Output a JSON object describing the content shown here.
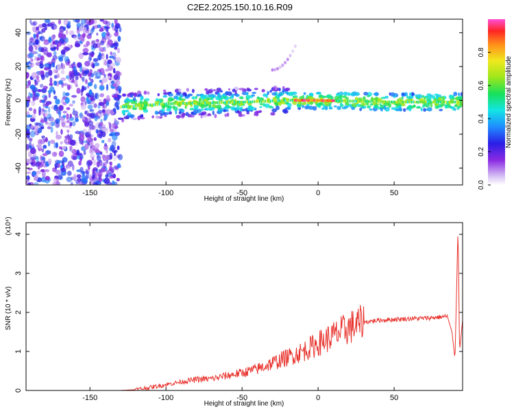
{
  "title": "C2E2.2025.150.10.16.R09",
  "chart_data": [
    {
      "type": "heatmap",
      "xlabel": "Height of straight line (km)",
      "ylabel": "Frequency (Hz)",
      "xlim": [
        -192,
        95
      ],
      "ylim": [
        -50,
        48
      ],
      "xticks": [
        -150,
        -100,
        -50,
        0,
        50
      ],
      "yticks": [
        -40,
        -20,
        0,
        20,
        40
      ],
      "colorbar": {
        "label": "Normalized spectral amplitude",
        "range": [
          0,
          1
        ],
        "ticks": [
          "0.0",
          "0.2",
          "0.4",
          "0.6",
          "0.8"
        ]
      },
      "regions": [
        {
          "x": [
            -192,
            -130
          ],
          "y": [
            -50,
            48
          ],
          "amplitude": [
            0.05,
            0.35
          ],
          "pattern": "scattered"
        },
        {
          "x": [
            -130,
            95
          ],
          "y": [
            -8,
            8
          ],
          "amplitude": [
            0.1,
            0.7
          ],
          "pattern": "band"
        },
        {
          "x": [
            -15,
            10
          ],
          "y": [
            -3,
            3
          ],
          "amplitude": [
            0.8,
            1.0
          ],
          "pattern": "peak"
        },
        {
          "x": [
            -30,
            -15
          ],
          "y": [
            18,
            32
          ],
          "amplitude": [
            0.05,
            0.15
          ],
          "pattern": "faint-arc"
        }
      ],
      "band_center_hz": [
        {
          "x": -130,
          "y": -4
        },
        {
          "x": -100,
          "y": -2
        },
        {
          "x": -50,
          "y": -1
        },
        {
          "x": -20,
          "y": 0
        },
        {
          "x": 0,
          "y": 0
        },
        {
          "x": 50,
          "y": -1
        },
        {
          "x": 92,
          "y": -1
        }
      ],
      "grid": false
    },
    {
      "type": "line",
      "xlabel": "Height of straight line (km)",
      "ylabel": "SNR (10 * v/v)",
      "yscale_label": "(x10⁴)",
      "xlim": [
        -192,
        95
      ],
      "ylim": [
        0,
        4.3
      ],
      "xticks": [
        -150,
        -100,
        -50,
        0,
        50
      ],
      "yticks": [
        0,
        1,
        2,
        3,
        4
      ],
      "color": "#e8302a",
      "series": [
        {
          "x": [
            -192,
            -150,
            -130,
            -120,
            -110,
            -100,
            -90,
            -80,
            -70,
            -60,
            -50,
            -40,
            -30,
            -20,
            -10,
            0,
            10,
            20,
            30,
            40,
            50,
            60,
            70,
            80,
            85,
            88,
            90,
            92,
            93,
            95
          ],
          "y": [
            0,
            0,
            0,
            0.02,
            0.08,
            0.15,
            0.22,
            0.28,
            0.3,
            0.38,
            0.45,
            0.55,
            0.7,
            0.85,
            1.0,
            1.2,
            1.4,
            1.6,
            1.75,
            1.8,
            1.82,
            1.84,
            1.85,
            1.88,
            1.9,
            1.5,
            0.8,
            4.2,
            1.0,
            1.8
          ]
        }
      ],
      "grid": false
    }
  ]
}
